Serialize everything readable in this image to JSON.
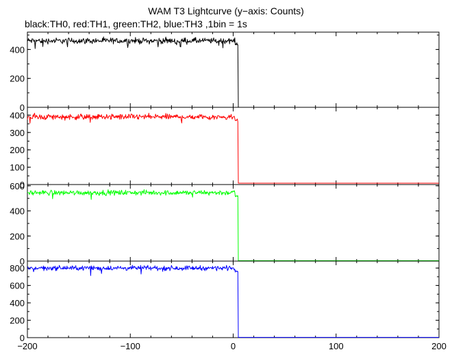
{
  "title": "WAM T3 Lightcurve (y−axis: Counts)",
  "subtitle": "black:TH0, red:TH1, green:TH2, blue:TH3 ,1bin = 1s",
  "chart_data": [
    {
      "type": "line",
      "name": "TH0",
      "color": "#000000",
      "xlim": [
        -200,
        200
      ],
      "ylim": [
        0,
        520
      ],
      "yticks": [
        0,
        200,
        400
      ],
      "pre_level": 460,
      "pre_noise": 30,
      "drop_time": 5,
      "post_level": 0
    },
    {
      "type": "line",
      "name": "TH1",
      "color": "#ff0000",
      "xlim": [
        -200,
        200
      ],
      "ylim": [
        0,
        445
      ],
      "yticks": [
        0,
        100,
        200,
        300,
        400
      ],
      "pre_level": 390,
      "pre_noise": 25,
      "drop_time": 5,
      "post_level": 8
    },
    {
      "type": "line",
      "name": "TH2",
      "color": "#00ff00",
      "xlim": [
        -200,
        200
      ],
      "ylim": [
        0,
        610
      ],
      "yticks": [
        0,
        200,
        400,
        600
      ],
      "pre_level": 545,
      "pre_noise": 30,
      "drop_time": 5,
      "post_level": 3
    },
    {
      "type": "line",
      "name": "TH3",
      "color": "#0000ff",
      "xlim": [
        -200,
        200
      ],
      "ylim": [
        0,
        880
      ],
      "yticks": [
        0,
        200,
        400,
        600,
        800
      ],
      "pre_level": 800,
      "pre_noise": 40,
      "drop_time": 5,
      "post_level": 3
    }
  ],
  "x_axis": {
    "ticks": [
      -200,
      -100,
      0,
      100,
      200
    ]
  }
}
